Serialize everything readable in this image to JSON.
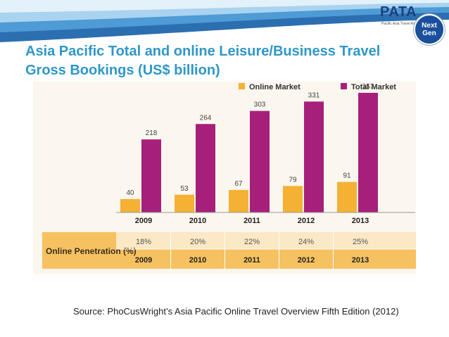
{
  "header": {
    "logo_text": "PATA",
    "logo_tagline": "Pacific Asia Travel Association",
    "badge_line1": "Next",
    "badge_line2": "Gen"
  },
  "title": "Asia Pacific Total and online Leisure/Business Travel Gross Bookings (US$ billion)",
  "source": "Source: PhoCusWright’s Asia Pacific Online Travel Overview Fifth Edition (2012)",
  "colors": {
    "title": "#2f97c8",
    "online": "#f4b133",
    "total": "#a6207a",
    "table_band": "#f6c160"
  },
  "chart_data": {
    "type": "bar",
    "title": "",
    "categories": [
      "2009",
      "2010",
      "2011",
      "2012",
      "2013"
    ],
    "series": [
      {
        "name": "Online Market",
        "values": [
          40,
          53,
          67,
          79,
          91
        ]
      },
      {
        "name": "Total Market",
        "values": [
          218,
          264,
          303,
          331,
          357
        ]
      }
    ],
    "ylim": [
      0,
      380
    ],
    "legend": "top-right",
    "table": {
      "row_label": "Online Penetration (%)",
      "values": [
        "18%",
        "20%",
        "22%",
        "24%",
        "25%"
      ],
      "years": [
        "2009",
        "2010",
        "2011",
        "2012",
        "2013"
      ]
    }
  }
}
